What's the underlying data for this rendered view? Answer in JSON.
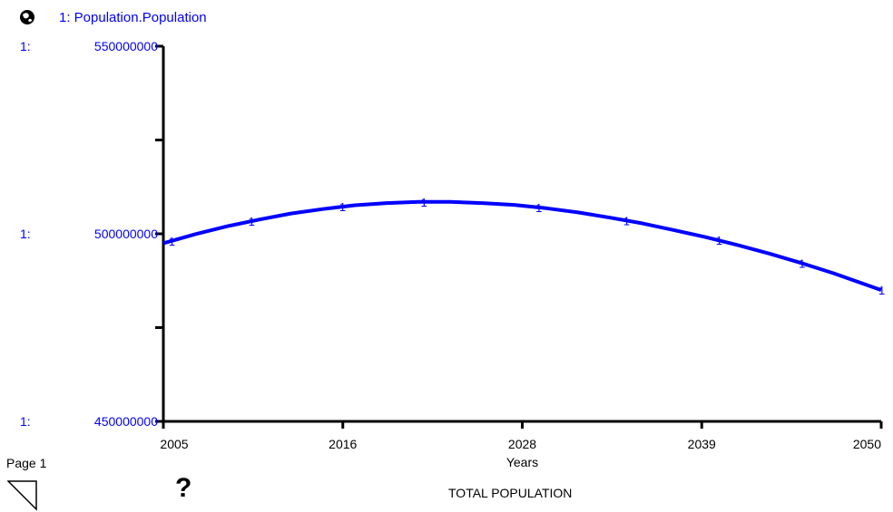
{
  "legend": {
    "label": "1: Population.Population"
  },
  "page": {
    "label": "Page 1"
  },
  "footer": {
    "chart_title": "TOTAL POPULATION",
    "help_symbol": "?"
  },
  "colors": {
    "series": "#0000ff",
    "axis": "#000000"
  },
  "icons": {
    "legend": "globe-icon",
    "help": "question-mark-icon",
    "page_corner": "page-corner-icon"
  },
  "chart_data": {
    "type": "line",
    "title": "TOTAL POPULATION",
    "xlabel": "Years",
    "ylabel": "",
    "xlim": [
      2005,
      2050
    ],
    "ylim": [
      450000000,
      550000000
    ],
    "x_ticks": [
      "2005",
      "2016",
      "2028",
      "2039",
      "2050"
    ],
    "y_ticks": [
      {
        "prefix": "1:",
        "value": 550000000,
        "label": "550000000"
      },
      {
        "value": 525000000,
        "label": ""
      },
      {
        "prefix": "1:",
        "value": 500000000,
        "label": "500000000"
      },
      {
        "value": 475000000,
        "label": ""
      },
      {
        "prefix": "1:",
        "value": 450000000,
        "label": "450000000"
      }
    ],
    "grid": false,
    "series": [
      {
        "name": "1: Population.Population",
        "marker_label": "1",
        "marker_x": [
          2005.5,
          2010.5,
          2016.2,
          2021.3,
          2028.5,
          2034,
          2039.8,
          2045,
          2050
        ],
        "x": [
          2005,
          2007,
          2009,
          2011,
          2013,
          2015,
          2017,
          2019,
          2021,
          2023,
          2025,
          2027,
          2029,
          2031,
          2033,
          2035,
          2037,
          2039,
          2041,
          2043,
          2045,
          2047,
          2049,
          2050
        ],
        "values": [
          497500000,
          499900000,
          502000000,
          503800000,
          505400000,
          506600000,
          507600000,
          508200000,
          508500000,
          508500000,
          508200000,
          507700000,
          506800000,
          505700000,
          504300000,
          502800000,
          501000000,
          499100000,
          497000000,
          494700000,
          492200000,
          489500000,
          486500000,
          485000000
        ]
      }
    ]
  }
}
